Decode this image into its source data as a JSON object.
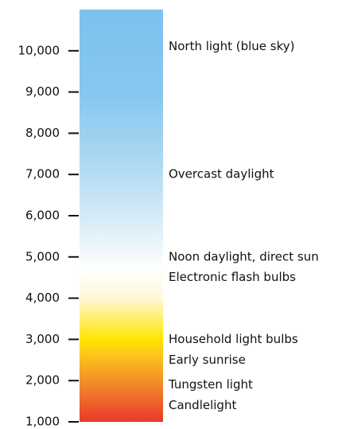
{
  "chart_data": {
    "type": "colorscale",
    "ylim": [
      1000,
      11000
    ],
    "yticks": [
      {
        "value": 1000,
        "label": "1,000"
      },
      {
        "value": 2000,
        "label": "2,000"
      },
      {
        "value": 3000,
        "label": "3,000"
      },
      {
        "value": 4000,
        "label": "4,000"
      },
      {
        "value": 5000,
        "label": "5,000"
      },
      {
        "value": 6000,
        "label": "6,000"
      },
      {
        "value": 7000,
        "label": "7,000"
      },
      {
        "value": 8000,
        "label": "8,000"
      },
      {
        "value": 9000,
        "label": "9,000"
      },
      {
        "value": 10000,
        "label": "10,000"
      }
    ],
    "gradient": [
      {
        "value": 1000,
        "color": "#e8392a"
      },
      {
        "value": 1800,
        "color": "#f17f2a"
      },
      {
        "value": 2600,
        "color": "#fbc41c"
      },
      {
        "value": 3000,
        "color": "#ffe500"
      },
      {
        "value": 4000,
        "color": "#fff8d8"
      },
      {
        "value": 4700,
        "color": "#ffffff"
      },
      {
        "value": 6000,
        "color": "#d4eaf7"
      },
      {
        "value": 7500,
        "color": "#a8d6f1"
      },
      {
        "value": 9000,
        "color": "#85c7ef"
      },
      {
        "value": 11000,
        "color": "#7cc2ee"
      }
    ],
    "annotations": [
      {
        "value": 10100,
        "text": "North light (blue sky)"
      },
      {
        "value": 7000,
        "text": "Overcast daylight"
      },
      {
        "value": 5000,
        "text": "Noon daylight, direct sun"
      },
      {
        "value": 4500,
        "text": "Electronic flash bulbs"
      },
      {
        "value": 3000,
        "text": "Household light bulbs"
      },
      {
        "value": 2500,
        "text": "Early sunrise"
      },
      {
        "value": 1900,
        "text": "Tungsten light"
      },
      {
        "value": 1400,
        "text": "Candlelight"
      }
    ]
  }
}
